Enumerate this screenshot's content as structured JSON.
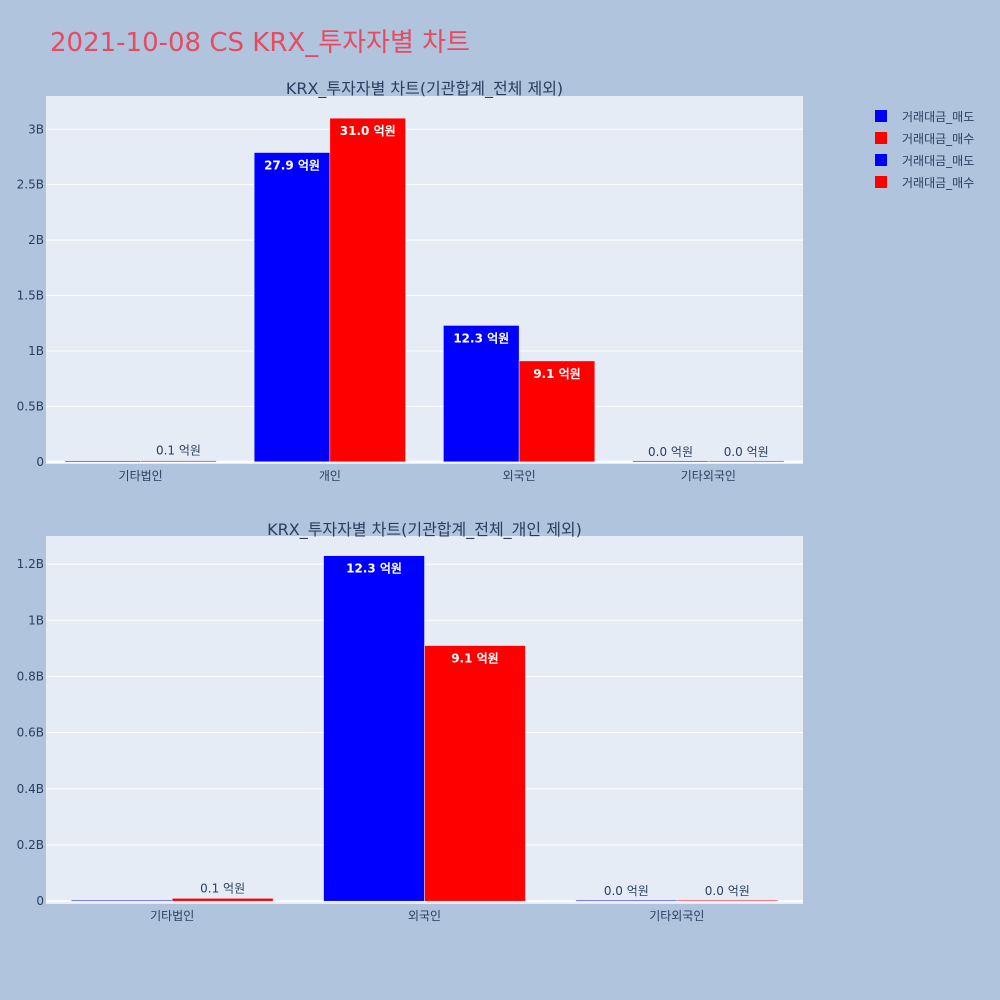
{
  "title": "2021-10-08 CS KRX_투자자별 차트",
  "unit_suffix": " 억원",
  "colors": {
    "background": "#b0c4de",
    "plot_bg": "#e5ecf6",
    "sell": "#0000ff",
    "buy": "#ff0000",
    "title": "#e84a5f",
    "text": "#2a3f5f"
  },
  "legend": [
    {
      "label": "거래대금_매도",
      "color": "#0000ff"
    },
    {
      "label": "거래대금_매수",
      "color": "#ff0000"
    },
    {
      "label": "거래대금_매도",
      "color": "#0000ff"
    },
    {
      "label": "거래대금_매수",
      "color": "#ff0000"
    }
  ],
  "chart_data": [
    {
      "type": "bar",
      "title": "KRX_투자자별 차트(기관합계_전체 제외)",
      "categories": [
        "기타법인",
        "개인",
        "외국인",
        "기타외국인"
      ],
      "series": [
        {
          "name": "거래대금_매도",
          "color": "#0000ff",
          "values": [
            0,
            2790000000,
            1230000000,
            0
          ],
          "labels": [
            "",
            "27.9",
            "12.3",
            "0.0"
          ]
        },
        {
          "name": "거래대금_매수",
          "color": "#ff0000",
          "values": [
            10000000,
            3100000000,
            910000000,
            0
          ],
          "labels": [
            "0.1",
            "31.0",
            "9.1",
            "0.0"
          ]
        }
      ],
      "yticks": [
        0,
        500000000,
        1000000000,
        1500000000,
        2000000000,
        2500000000,
        3000000000
      ],
      "ytick_labels": [
        "0",
        "0.5B",
        "1B",
        "1.5B",
        "2B",
        "2.5B",
        "3B"
      ],
      "ylim": [
        -20000000,
        3300000000
      ],
      "grid": true
    },
    {
      "type": "bar",
      "title": "KRX_투자자별 차트(기관합계_전체_개인 제외)",
      "categories": [
        "기타법인",
        "외국인",
        "기타외국인"
      ],
      "series": [
        {
          "name": "거래대금_매도",
          "color": "#0000ff",
          "values": [
            0,
            1230000000,
            0
          ],
          "labels": [
            "",
            "12.3",
            "0.0"
          ]
        },
        {
          "name": "거래대금_매수",
          "color": "#ff0000",
          "values": [
            10000000,
            910000000,
            0
          ],
          "labels": [
            "0.1",
            "9.1",
            "0.0"
          ]
        }
      ],
      "yticks": [
        0,
        200000000,
        400000000,
        600000000,
        800000000,
        1000000000,
        1200000000
      ],
      "ytick_labels": [
        "0",
        "0.2B",
        "0.4B",
        "0.6B",
        "0.8B",
        "1B",
        "1.2B"
      ],
      "ylim": [
        -10000000,
        1300000000
      ],
      "grid": true
    }
  ]
}
